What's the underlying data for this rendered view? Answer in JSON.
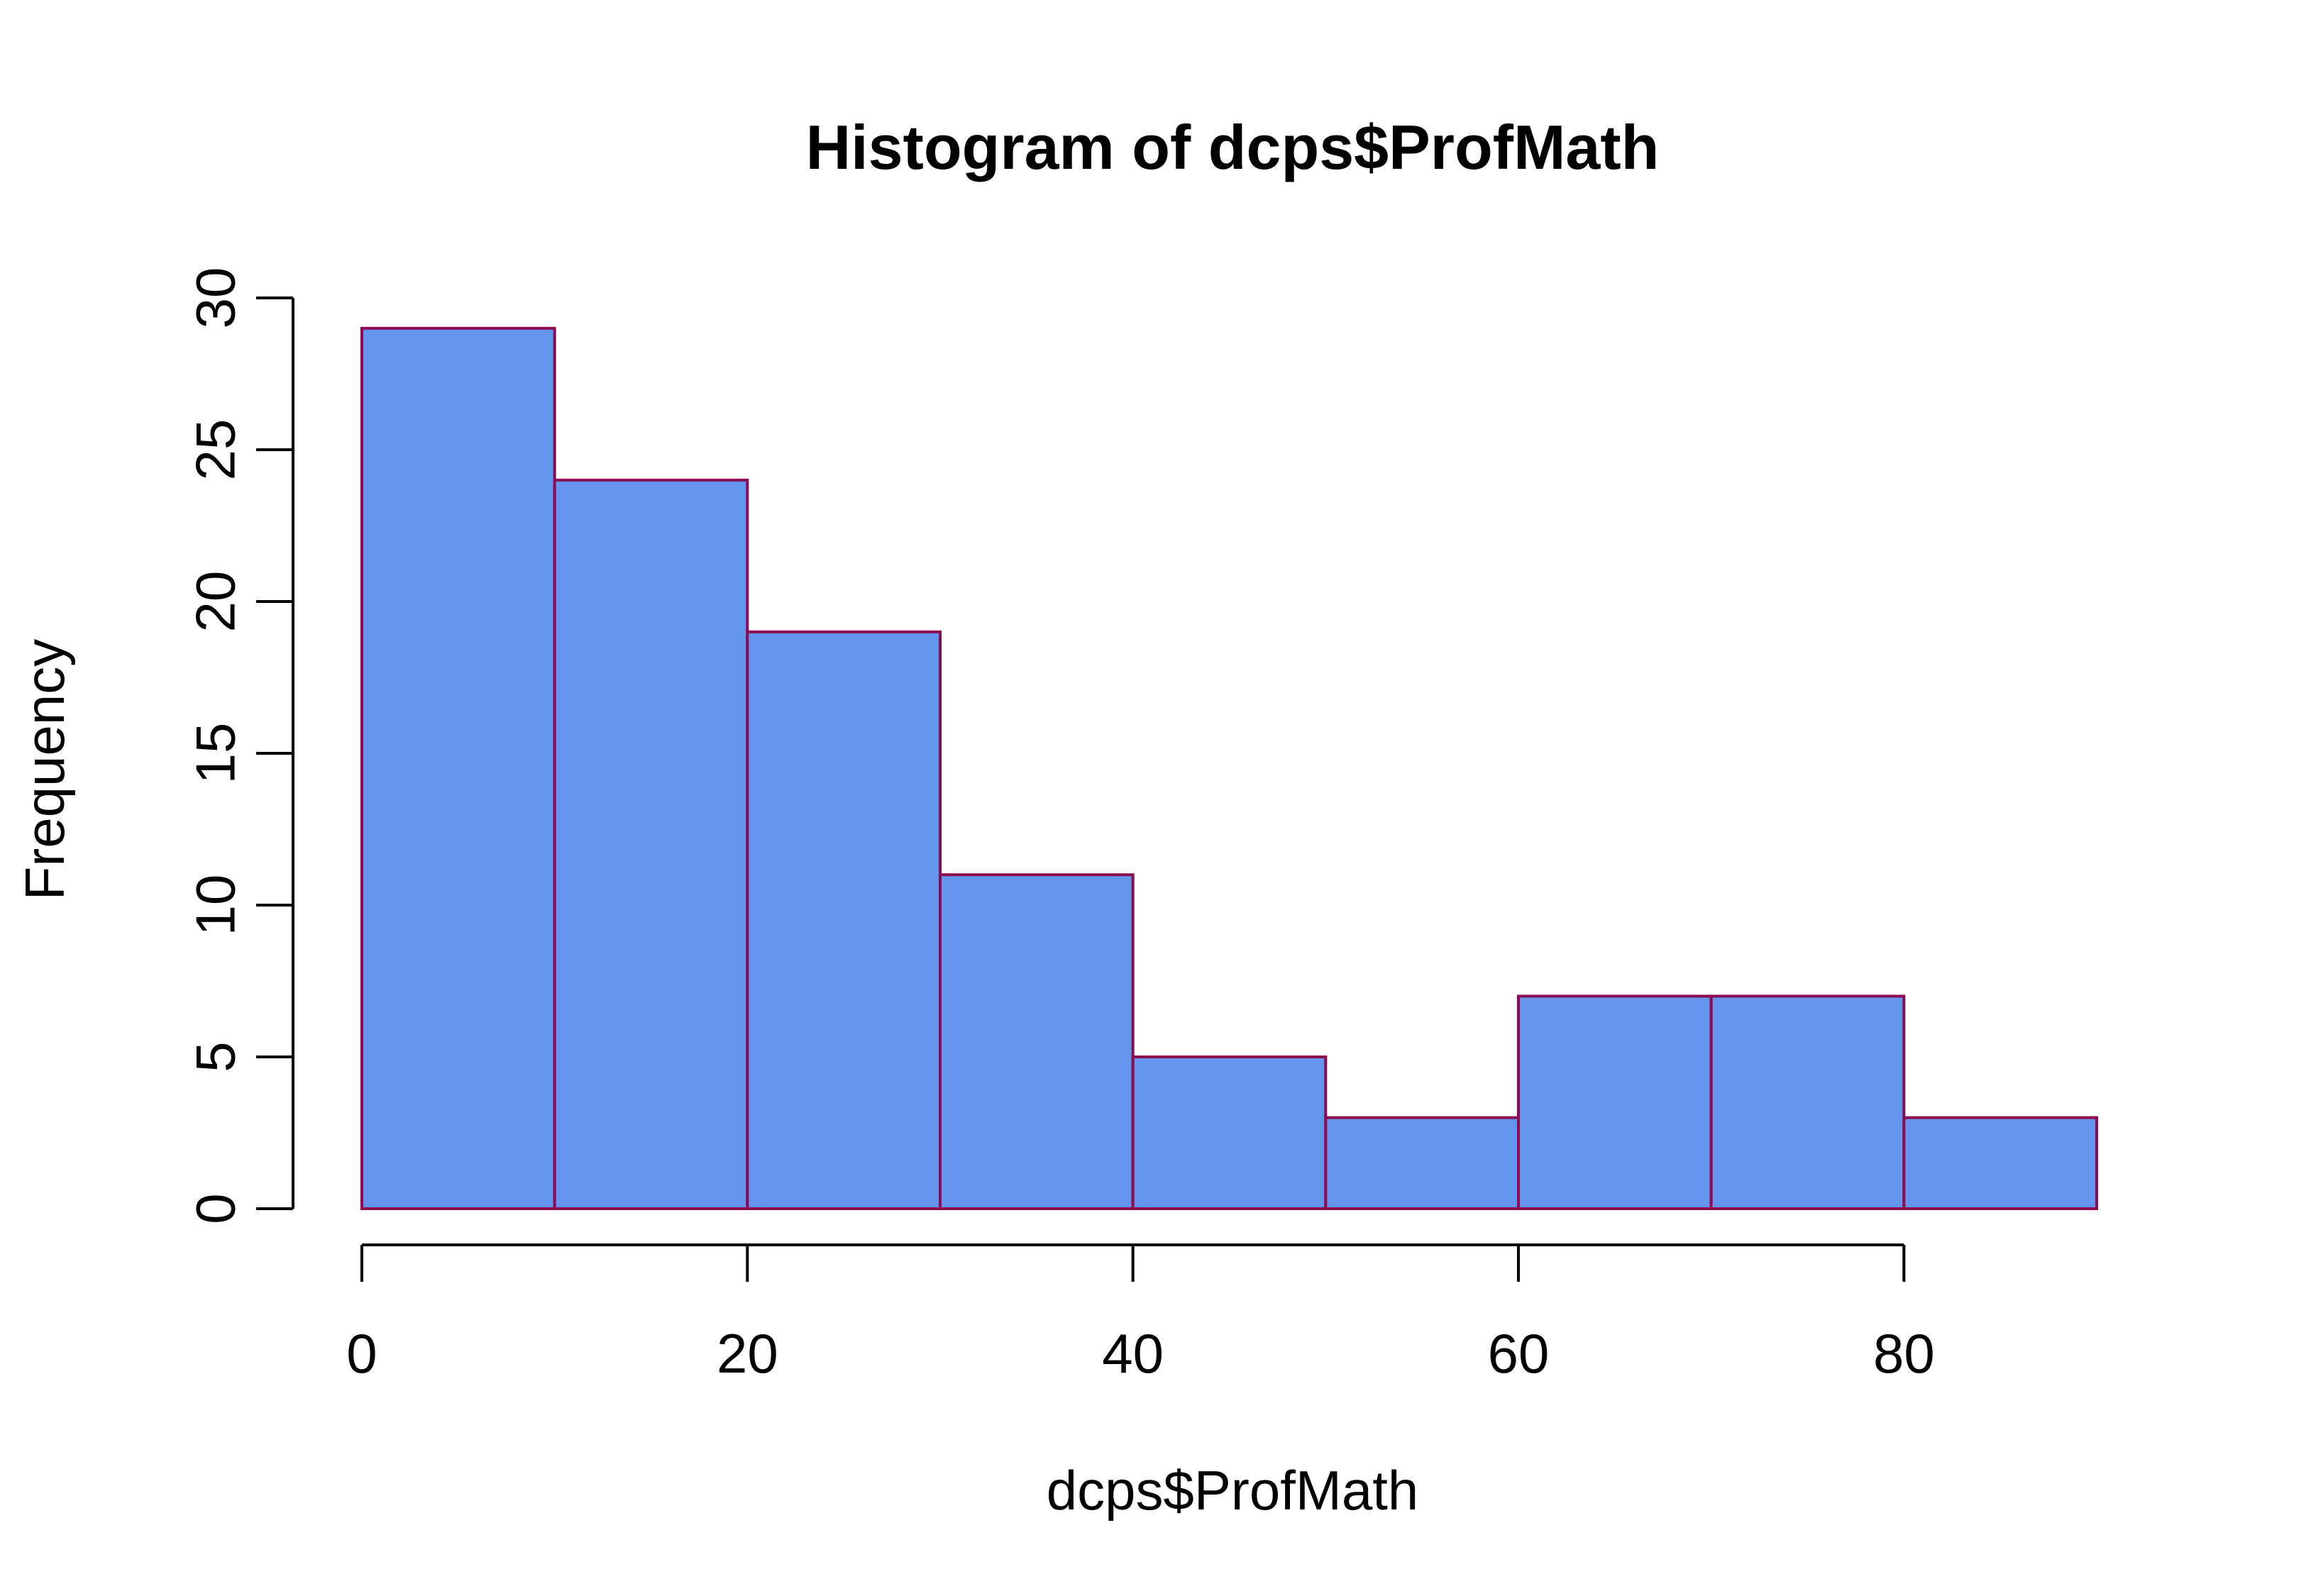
{
  "chart_data": {
    "type": "bar",
    "title": "Histogram of dcps$ProfMath",
    "xlabel": "dcps$ProfMath",
    "ylabel": "Frequency",
    "bins": [
      {
        "from": 0,
        "to": 10,
        "count": 29
      },
      {
        "from": 10,
        "to": 20,
        "count": 24
      },
      {
        "from": 20,
        "to": 30,
        "count": 19
      },
      {
        "from": 30,
        "to": 40,
        "count": 11
      },
      {
        "from": 40,
        "to": 50,
        "count": 5
      },
      {
        "from": 50,
        "to": 60,
        "count": 3
      },
      {
        "from": 60,
        "to": 70,
        "count": 7
      },
      {
        "from": 70,
        "to": 80,
        "count": 7
      },
      {
        "from": 80,
        "to": 90,
        "count": 3
      }
    ],
    "xticks": [
      0,
      20,
      40,
      60,
      80
    ],
    "yticks": [
      0,
      5,
      10,
      15,
      20,
      25,
      30
    ],
    "xlim": [
      0,
      90
    ],
    "ylim": [
      0,
      30
    ],
    "grid": false,
    "bar_fill": "#6495ED",
    "bar_border": "#8B0A50"
  }
}
